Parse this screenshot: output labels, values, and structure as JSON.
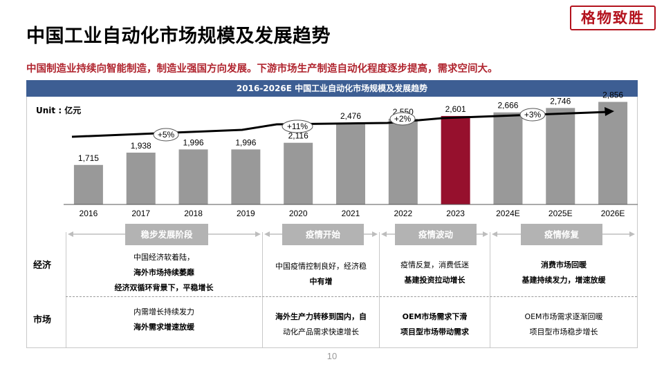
{
  "page_title": "中国工业自动化市场规模及发展趋势",
  "logo_text": "格物致胜",
  "subtitle": "中国制造业持续向智能制造，制造业强国方向发展。下游市场生产制造自动化程度逐步提高，需求空间大。",
  "colors": {
    "header_bar": "#3d5e93",
    "bar": "#999999",
    "highlight_bar": "#96102d",
    "subtitle": "#b0252f",
    "stage_pill": "#b3b3b3"
  },
  "chart_data": {
    "type": "bar",
    "title": "2016-2026E 中国工业自动化市场规模及发展趋势",
    "unit": "Unit : 亿元",
    "categories": [
      "2016",
      "2017",
      "2018",
      "2019",
      "2020",
      "2021",
      "2022",
      "2023",
      "2024E",
      "2025E",
      "2026E"
    ],
    "values": [
      1715,
      1938,
      1996,
      1996,
      2116,
      2476,
      2550,
      2601,
      2666,
      2746,
      2856
    ],
    "value_labels": [
      "1,715",
      "1,938",
      "1,996",
      "1,996",
      "2,116",
      "2,476",
      "2,550",
      "2,601",
      "2,666",
      "2,746",
      "2,856"
    ],
    "highlight_category": "2023",
    "growth_annotations": [
      {
        "label": "+5%",
        "from": "2016",
        "to": "2019"
      },
      {
        "label": "+11%",
        "from": "2020",
        "to": "2021"
      },
      {
        "label": "+2%",
        "from": "2022",
        "to": "2023"
      },
      {
        "label": "+3%",
        "from": "2024E",
        "to": "2026E"
      }
    ],
    "grid": false
  },
  "stages": [
    "稳步发展阶段",
    "疫情开始",
    "疫情波动",
    "疫情修复"
  ],
  "rows": {
    "economy": {
      "label": "经济",
      "cells": [
        [
          "中国经济软着陆，",
          "海外市场持续萎靡",
          "经济双循环背景下，平稳增长"
        ],
        [
          "中国疫情控制良好，经济稳",
          "中有增"
        ],
        [
          "疫情反复，消费低迷",
          "基建投资拉动增长"
        ],
        [
          "消费市场回暖",
          "基建持续发力，增速放缓"
        ]
      ]
    },
    "market": {
      "label": "市场",
      "cells": [
        [
          "内需增长持续发力",
          "海外需求增速放缓"
        ],
        [
          "海外生产力转移到国内，自",
          "动化产品需求快速增长"
        ],
        [
          "OEM市场需求下滑",
          "项目型市场带动需求"
        ],
        [
          "OEM市场需求逐渐回暖",
          "项目型市场稳步增长"
        ]
      ]
    }
  },
  "page_number": "10"
}
